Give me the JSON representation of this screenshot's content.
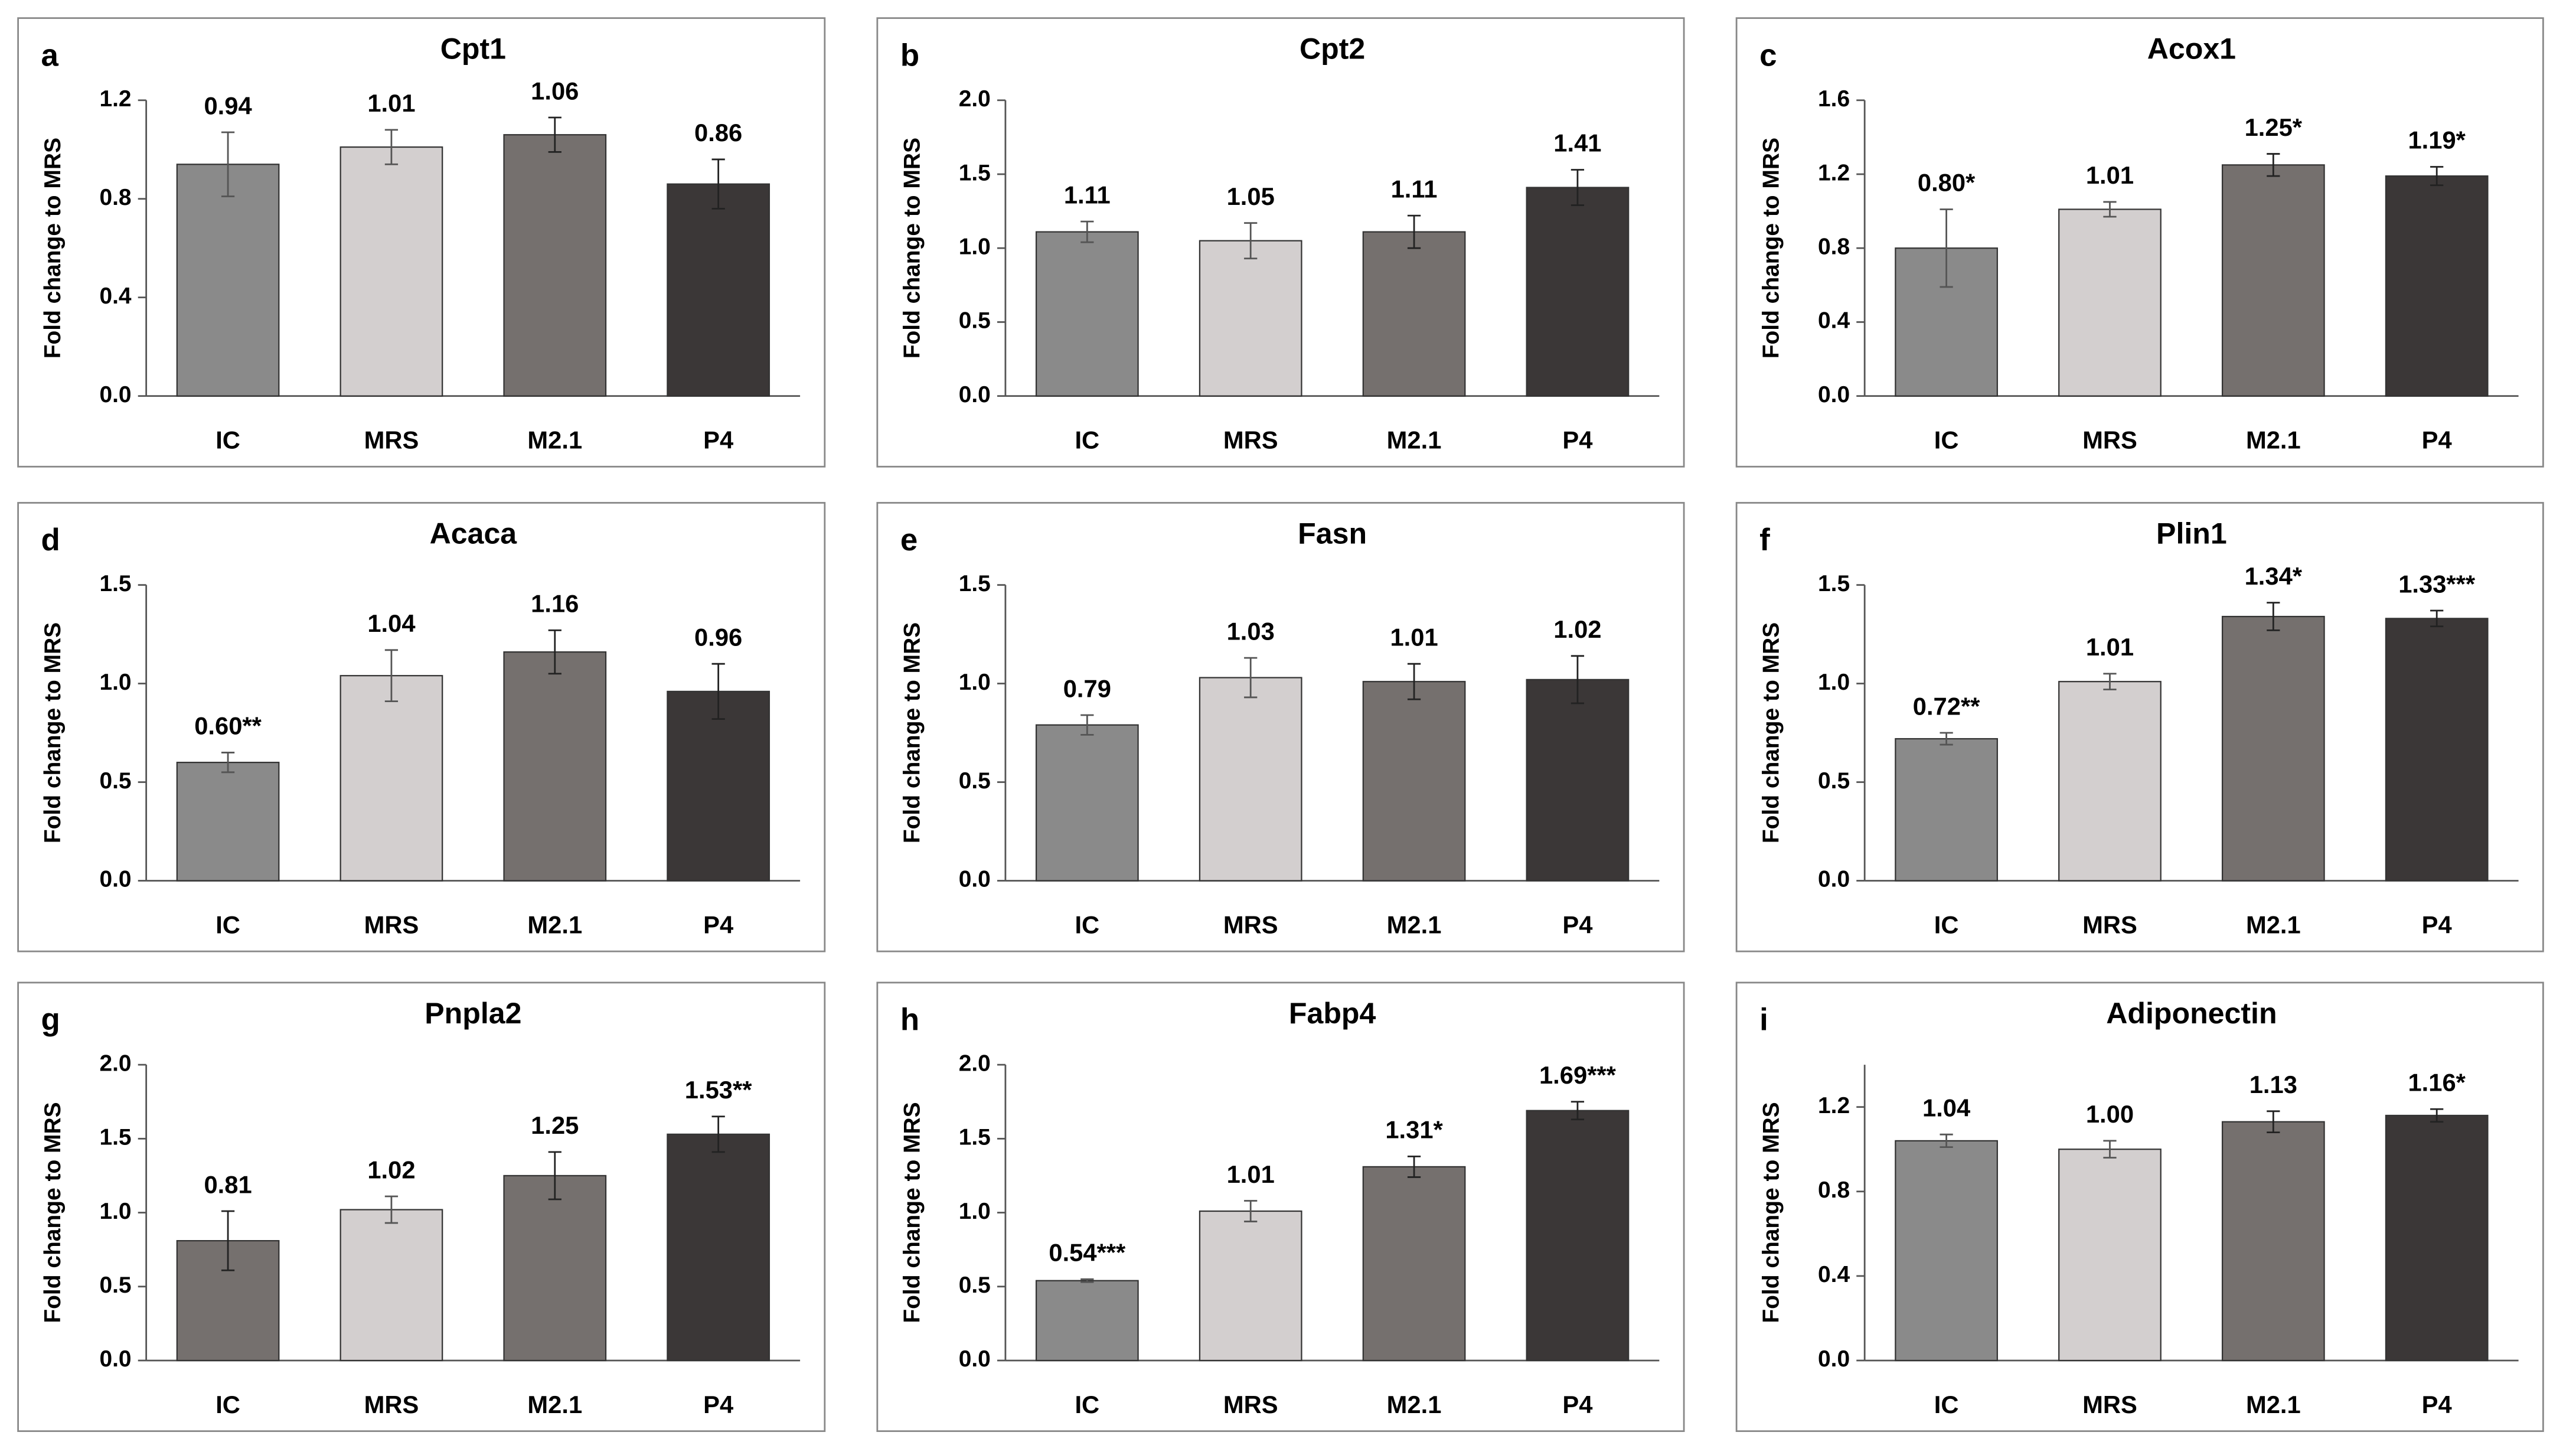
{
  "chart_data": [
    {
      "type": "bar",
      "panel": "a",
      "title": "Cpt1",
      "ylabel": "Fold change to MRS",
      "categories": [
        "IC",
        "MRS",
        "M2.1",
        "P4"
      ],
      "values": [
        0.94,
        1.01,
        1.06,
        0.86
      ],
      "value_labels": [
        "0.94",
        "1.01",
        "1.06",
        "0.86"
      ],
      "errors": [
        0.13,
        0.07,
        0.07,
        0.1
      ],
      "colors": [
        "#8a8a8a",
        "#d3cfcf",
        "#75706e",
        "#3b3737"
      ],
      "ylim": [
        0,
        1.2
      ],
      "yticks": [
        {
          "value": 0,
          "label": "0.0"
        },
        {
          "value": 0.4,
          "label": "0.4"
        },
        {
          "value": 0.8,
          "label": "0.8"
        },
        {
          "value": 1.2,
          "label": "1.2"
        }
      ]
    },
    {
      "type": "bar",
      "panel": "b",
      "title": "Cpt2",
      "ylabel": "Fold change to MRS",
      "categories": [
        "IC",
        "MRS",
        "M2.1",
        "P4"
      ],
      "values": [
        1.11,
        1.05,
        1.11,
        1.41
      ],
      "value_labels": [
        "1.11",
        "1.05",
        "1.11",
        "1.41"
      ],
      "errors": [
        0.07,
        0.12,
        0.11,
        0.12
      ],
      "colors": [
        "#8a8a8a",
        "#d3cfcf",
        "#75706e",
        "#3b3737"
      ],
      "ylim": [
        0,
        2
      ],
      "yticks": [
        {
          "value": 0,
          "label": "0.0"
        },
        0.5,
        {
          "value": 1,
          "label": "1.0"
        },
        1.5,
        {
          "value": 2,
          "label": "2.0"
        }
      ]
    },
    {
      "type": "bar",
      "panel": "c",
      "title": "Acox1",
      "ylabel": "Fold change to MRS",
      "categories": [
        "IC",
        "MRS",
        "M2.1",
        "P4"
      ],
      "values": [
        0.8,
        1.01,
        1.25,
        1.19
      ],
      "value_labels": [
        "0.80*",
        "1.01",
        "1.25*",
        "1.19*"
      ],
      "errors": [
        0.21,
        0.04,
        0.06,
        0.05
      ],
      "colors": [
        "#8a8a8a",
        "#d3cfcf",
        "#75706e",
        "#3b3737"
      ],
      "ylim": [
        0,
        1.6
      ],
      "yticks": [
        {
          "value": 0,
          "label": "0.0"
        },
        0.4,
        0.8,
        1.2,
        1.6
      ]
    },
    {
      "type": "bar",
      "panel": "d",
      "title": "Acaca",
      "ylabel": "Fold change to MRS",
      "categories": [
        "IC",
        "MRS",
        "M2.1",
        "P4"
      ],
      "values": [
        0.6,
        1.04,
        1.16,
        0.96
      ],
      "value_labels": [
        "0.60**",
        "1.04",
        "1.16",
        "0.96"
      ],
      "errors": [
        0.05,
        0.13,
        0.11,
        0.14
      ],
      "colors": [
        "#8a8a8a",
        "#d3cfcf",
        "#75706e",
        "#3b3737"
      ],
      "ylim": [
        0,
        1.5
      ],
      "yticks": [
        {
          "value": 0,
          "label": "0.0"
        },
        0.5,
        {
          "value": 1,
          "label": "1.0"
        },
        1.5
      ]
    },
    {
      "type": "bar",
      "panel": "e",
      "title": "Fasn",
      "ylabel": "Fold change to MRS",
      "categories": [
        "IC",
        "MRS",
        "M2.1",
        "P4"
      ],
      "values": [
        0.79,
        1.03,
        1.01,
        1.02
      ],
      "value_labels": [
        "0.79",
        "1.03",
        "1.01",
        "1.02"
      ],
      "errors": [
        0.05,
        0.1,
        0.09,
        0.12
      ],
      "colors": [
        "#8a8a8a",
        "#d3cfcf",
        "#75706e",
        "#3b3737"
      ],
      "ylim": [
        0,
        1.5
      ],
      "yticks": [
        {
          "value": 0,
          "label": "0.0"
        },
        0.5,
        {
          "value": 1,
          "label": "1.0"
        },
        1.5
      ]
    },
    {
      "type": "bar",
      "panel": "f",
      "title": "Plin1",
      "ylabel": "Fold change to MRS",
      "categories": [
        "IC",
        "MRS",
        "M2.1",
        "P4"
      ],
      "values": [
        0.72,
        1.01,
        1.34,
        1.33
      ],
      "value_labels": [
        "0.72**",
        "1.01",
        "1.34*",
        "1.33***"
      ],
      "errors": [
        0.03,
        0.04,
        0.07,
        0.04
      ],
      "colors": [
        "#8a8a8a",
        "#d3cfcf",
        "#75706e",
        "#3b3737"
      ],
      "ylim": [
        0,
        1.5
      ],
      "yticks": [
        {
          "value": 0,
          "label": "0.0"
        },
        0.5,
        {
          "value": 1,
          "label": "1.0"
        },
        1.5
      ]
    },
    {
      "type": "bar",
      "panel": "g",
      "title": "Pnpla2",
      "ylabel": "Fold change to MRS",
      "categories": [
        "IC",
        "MRS",
        "M2.1",
        "P4"
      ],
      "values": [
        0.81,
        1.02,
        1.25,
        1.53
      ],
      "value_labels": [
        "0.81",
        "1.02",
        "1.25",
        "1.53**"
      ],
      "errors": [
        0.2,
        0.09,
        0.16,
        0.12
      ],
      "colors": [
        "#75706e",
        "#d3cfcf",
        "#75706e",
        "#3b3737"
      ],
      "ylim": [
        0,
        2
      ],
      "yticks": [
        {
          "value": 0,
          "label": "0.0"
        },
        0.5,
        {
          "value": 1,
          "label": "1.0"
        },
        1.5,
        {
          "value": 2,
          "label": "2.0"
        }
      ]
    },
    {
      "type": "bar",
      "panel": "h",
      "title": "Fabp4",
      "ylabel": "Fold change to MRS",
      "categories": [
        "IC",
        "MRS",
        "M2.1",
        "P4"
      ],
      "values": [
        0.54,
        1.01,
        1.31,
        1.69
      ],
      "value_labels": [
        "0.54***",
        "1.01",
        "1.31*",
        "1.69***"
      ],
      "errors": [
        0.01,
        0.07,
        0.07,
        0.06
      ],
      "colors": [
        "#8a8a8a",
        "#d3cfcf",
        "#75706e",
        "#3b3737"
      ],
      "ylim": [
        0,
        2
      ],
      "yticks": [
        {
          "value": 0,
          "label": "0.0"
        },
        0.5,
        {
          "value": 1,
          "label": "1.0"
        },
        1.5,
        {
          "value": 2,
          "label": "2.0"
        }
      ]
    },
    {
      "type": "bar",
      "panel": "i",
      "title": "Adiponectin",
      "ylabel": "Fold change to MRS",
      "categories": [
        "IC",
        "MRS",
        "M2.1",
        "P4"
      ],
      "values": [
        1.04,
        1.0,
        1.13,
        1.16
      ],
      "value_labels": [
        "1.04",
        "1.00",
        "1.13",
        "1.16*"
      ],
      "errors": [
        0.03,
        0.04,
        0.05,
        0.03
      ],
      "colors": [
        "#8a8a8a",
        "#d3cfcf",
        "#75706e",
        "#3b3737"
      ],
      "ylim": [
        0,
        1.4
      ],
      "yticks": [
        {
          "value": 0,
          "label": "0.0"
        },
        0.4,
        0.8,
        1.2
      ]
    }
  ]
}
